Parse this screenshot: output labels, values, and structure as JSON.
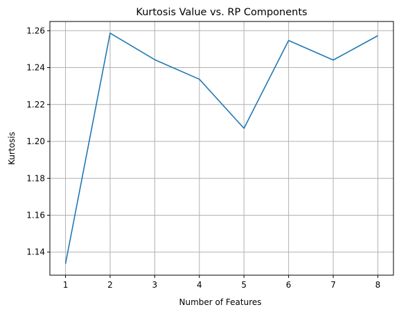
{
  "chart_data": {
    "type": "line",
    "title": "Kurtosis Value vs. RP Components",
    "xlabel": "Number of Features",
    "ylabel": "Kurtosis",
    "x": [
      1,
      2,
      3,
      4,
      5,
      6,
      7,
      8
    ],
    "series": [
      {
        "values": [
          1.1337,
          1.2587,
          1.2443,
          1.2337,
          1.2071,
          1.2547,
          1.2441,
          1.2573
        ],
        "color": "#1f77b4"
      }
    ],
    "xticks": [
      "1",
      "2",
      "3",
      "4",
      "5",
      "6",
      "7",
      "8"
    ],
    "yticks": [
      "1.14",
      "1.16",
      "1.18",
      "1.20",
      "1.22",
      "1.24",
      "1.26"
    ],
    "xlim": [
      0.65,
      8.35
    ],
    "ylim": [
      1.1275,
      1.265
    ],
    "grid": true
  }
}
